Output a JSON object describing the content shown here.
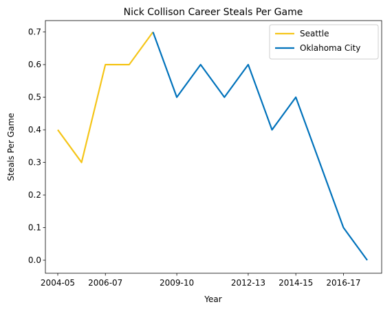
{
  "chart_data": {
    "type": "line",
    "title": "Nick Collison Career Steals Per Game",
    "xlabel": "Year",
    "ylabel": "Steals Per Game",
    "ylim": [
      -0.04,
      0.735
    ],
    "yticks": [
      0.0,
      0.1,
      0.2,
      0.3,
      0.4,
      0.5,
      0.6,
      0.7
    ],
    "ytick_labels": [
      "0.0",
      "0.1",
      "0.2",
      "0.3",
      "0.4",
      "0.5",
      "0.6",
      "0.7"
    ],
    "x": [
      "2004-05",
      "2005-06",
      "2006-07",
      "2007-08",
      "2008-09",
      "2009-10",
      "2010-11",
      "2011-12",
      "2012-13",
      "2013-14",
      "2014-15",
      "2015-16",
      "2016-17",
      "2017-18"
    ],
    "xtick_labels": [
      "2004-05",
      "2006-07",
      "2009-10",
      "2012-13",
      "2014-15",
      "2016-17"
    ],
    "grid": false,
    "legend_position": "top-right",
    "series": [
      {
        "name": "Seattle",
        "color": "#F5C518",
        "x": [
          "2004-05",
          "2005-06",
          "2006-07",
          "2007-08",
          "2008-09"
        ],
        "values": [
          0.4,
          0.3,
          0.6,
          0.6,
          0.7
        ]
      },
      {
        "name": "Oklahoma City",
        "color": "#0072BB",
        "x": [
          "2008-09",
          "2009-10",
          "2010-11",
          "2011-12",
          "2012-13",
          "2013-14",
          "2014-15",
          "2015-16",
          "2016-17",
          "2017-18"
        ],
        "values": [
          0.7,
          0.5,
          0.6,
          0.5,
          0.6,
          0.4,
          0.5,
          0.3,
          0.1,
          0.0
        ]
      }
    ]
  }
}
